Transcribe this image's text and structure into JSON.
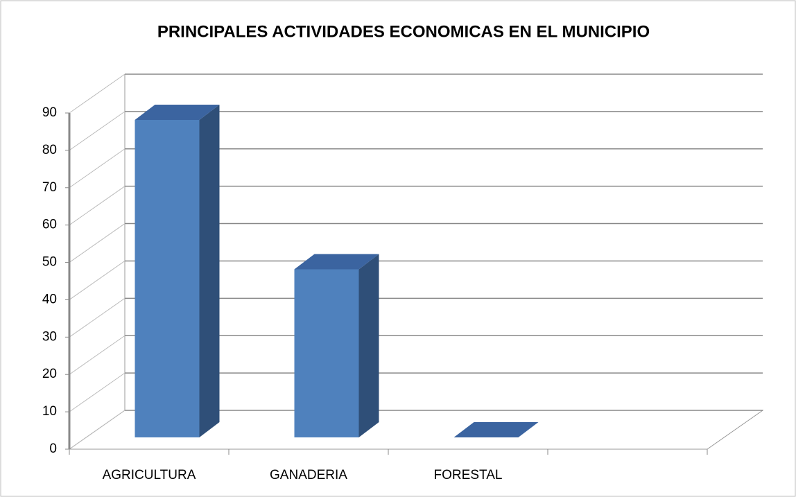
{
  "chart_data": {
    "type": "bar",
    "title": "PRINCIPALES ACTIVIDADES ECONOMICAS EN EL MUNICIPIO",
    "categories": [
      "AGRICULTURA",
      "GANADERIA",
      "FORESTAL"
    ],
    "values": [
      85,
      45,
      0
    ],
    "color": "#4f81bd",
    "ylim": [
      0,
      90
    ],
    "yticks": [
      0,
      10,
      20,
      30,
      40,
      50,
      60,
      70,
      80,
      90
    ],
    "grid": true
  }
}
